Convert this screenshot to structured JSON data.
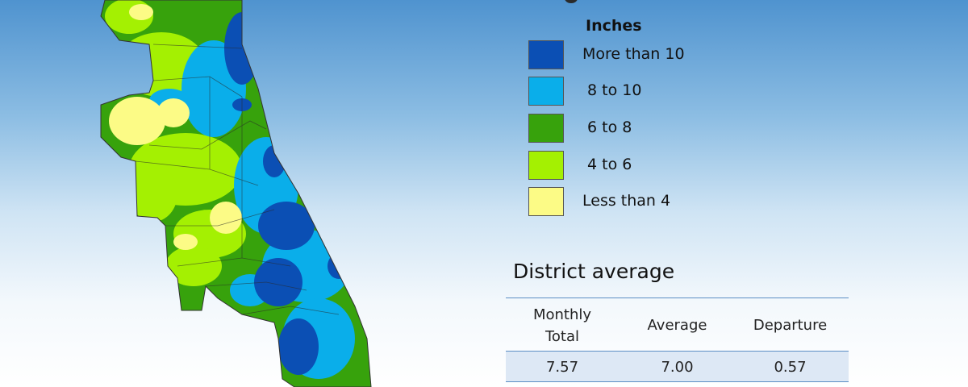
{
  "legend": {
    "title": "Inches",
    "items": [
      {
        "label": "More than 10",
        "color": "#0b4fb4"
      },
      {
        "label": " 8 to 10",
        "color": "#0aaeea"
      },
      {
        "label": " 6 to 8",
        "color": "#37a20c"
      },
      {
        "label": " 4 to 6",
        "color": "#a4f002"
      },
      {
        "label": "Less than 4",
        "color": "#fcfb86"
      }
    ]
  },
  "district_average": {
    "title": "District average",
    "headers": {
      "monthly_total_line1": "Monthly",
      "monthly_total_line2": "Total",
      "average": "Average",
      "departure": "Departure"
    },
    "row": {
      "monthly_total": "7.57",
      "average": "7.00",
      "departure": "0.57"
    }
  },
  "map": {
    "region_fill_colors": [
      "#0b4fb4",
      "#0aaeea",
      "#37a20c",
      "#a4f002",
      "#fcfb86"
    ]
  }
}
